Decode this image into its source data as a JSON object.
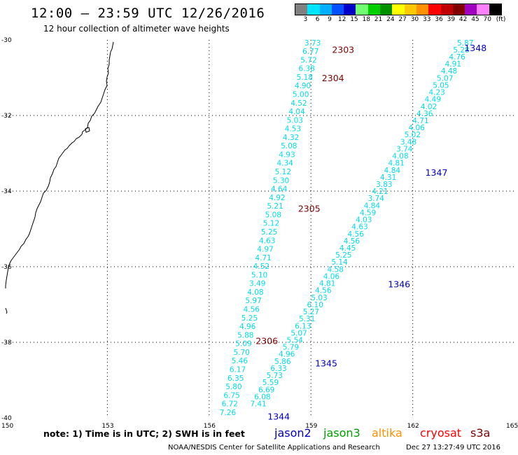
{
  "header": {
    "title": "12:00 – 23:59 UTC 12/26/2016",
    "subtitle": "12 hour collection of altimeter wave heights"
  },
  "legend": {
    "colors": [
      "#808080",
      "#00e5ff",
      "#00b0ff",
      "#0050ff",
      "#0000c8",
      "#70ff70",
      "#00d000",
      "#009000",
      "#ffff00",
      "#ffc800",
      "#ff9000",
      "#ff0000",
      "#c00000",
      "#800000",
      "#a000c0",
      "#ff80ff",
      "#000000"
    ],
    "labels": [
      "3",
      "6",
      "9",
      "12",
      "15",
      "18",
      "21",
      "24",
      "27",
      "30",
      "33",
      "36",
      "39",
      "42",
      "45",
      "70",
      "(ft)"
    ]
  },
  "map": {
    "lon_min": 150,
    "lon_max": 165,
    "lat_min": -40,
    "lat_max": -30,
    "lon_ticks": [
      {
        "value": 150,
        "label": "150"
      },
      {
        "value": 153,
        "label": "153"
      },
      {
        "value": 156,
        "label": "156"
      },
      {
        "value": 159,
        "label": "159"
      },
      {
        "value": 162,
        "label": "162"
      },
      {
        "value": 165,
        "label": "165"
      }
    ],
    "lat_ticks": [
      {
        "value": -30,
        "label": "-30"
      },
      {
        "value": -32,
        "label": "-32"
      },
      {
        "value": -34,
        "label": "-34"
      },
      {
        "value": -36,
        "label": "-36"
      },
      {
        "value": -38,
        "label": "-38"
      },
      {
        "value": -40,
        "label": "-40"
      }
    ],
    "tracks": [
      {
        "satellite": "sat-a",
        "color": "#00dcea",
        "start": {
          "lon": 159.05,
          "lat": -30.07
        },
        "end": {
          "lon": 156.55,
          "lat": -39.85
        },
        "values": [
          "3.73",
          "6.77",
          "5.72",
          "6.38",
          "5.18",
          "4.90",
          "5.00",
          "4.52",
          "4.04",
          "5.03",
          "4.53",
          "4.32",
          "5.08",
          "4.93",
          "4.34",
          "5.12",
          "5.30",
          "4.64",
          "4.92",
          "5.21",
          "5.08",
          "5.12",
          "5.25",
          "4.63",
          "4.97",
          "4.71",
          "4.52",
          "5.10",
          "3.49",
          "4.08",
          "5.97",
          "4.56",
          "5.25",
          "4.96",
          "5.88",
          "5.09",
          "5.70",
          "5.46",
          "6.17",
          "6.35",
          "5.80",
          "6.75",
          "6.72",
          "7.26"
        ]
      },
      {
        "satellite": "sat-b",
        "color": "#00dcea",
        "start": {
          "lon": 163.55,
          "lat": -30.07
        },
        "end": {
          "lon": 157.45,
          "lat": -39.62
        },
        "values": [
          "5.87",
          "5.28",
          "4.76",
          "4.91",
          "4.48",
          "5.07",
          "5.05",
          "4.23",
          "4.49",
          "4.02",
          "4.36",
          "4.71",
          "4.06",
          "5.02",
          "3.48",
          "3.74",
          "4.08",
          "4.81",
          "4.84",
          "4.31",
          "3.83",
          "4.21",
          "3.74",
          "4.84",
          "4.59",
          "4.03",
          "4.63",
          "4.56",
          "4.56",
          "4.45",
          "5.25",
          "5.14",
          "4.58",
          "4.06",
          "4.81",
          "4.56",
          "5.03",
          "6.10",
          "5.27",
          "5.31",
          "6.13",
          "5.07",
          "5.54",
          "5.79",
          "4.96",
          "5.86",
          "6.33",
          "5.73",
          "5.59",
          "6.69",
          "6.08",
          "7.41"
        ]
      }
    ],
    "pass_labels": [
      {
        "text": "2303",
        "lon": 159.95,
        "lat": -30.25,
        "color": "#800000"
      },
      {
        "text": "2304",
        "lon": 159.65,
        "lat": -31.0,
        "color": "#800000"
      },
      {
        "text": "2305",
        "lon": 158.95,
        "lat": -34.45,
        "color": "#800000"
      },
      {
        "text": "2306",
        "lon": 157.7,
        "lat": -37.95,
        "color": "#800000"
      },
      {
        "text": "1348",
        "lon": 163.85,
        "lat": -30.2,
        "color": "#0000c8"
      },
      {
        "text": "1347",
        "lon": 162.7,
        "lat": -33.5,
        "color": "#0000c8"
      },
      {
        "text": "1346",
        "lon": 161.6,
        "lat": -36.45,
        "color": "#0000c8"
      },
      {
        "text": "1345",
        "lon": 159.45,
        "lat": -38.55,
        "color": "#0000c8"
      },
      {
        "text": "1344",
        "lon": 158.05,
        "lat": -39.95,
        "color": "#0000c8"
      }
    ]
  },
  "footer": {
    "note": "note:  1) Time is in UTC; 2) SWH is in feet",
    "satellites": [
      {
        "name": "jason2",
        "color": "#0000c8"
      },
      {
        "name": "jason3",
        "color": "#00a000"
      },
      {
        "name": "altika",
        "color": "#ff9000"
      },
      {
        "name": "cryosat",
        "color": "#ff0000"
      },
      {
        "name": "s3a",
        "color": "#800000"
      }
    ],
    "credit": "NOAA/NESDIS Center for Satellite Applications and Research",
    "timestamp": "Dec 27 13:27:49 UTC 2016"
  }
}
